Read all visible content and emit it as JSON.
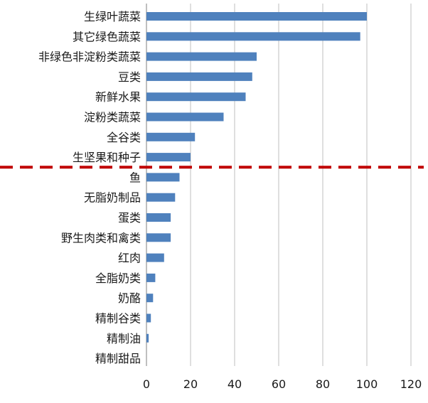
{
  "chart_data": {
    "type": "bar",
    "orientation": "horizontal",
    "categories": [
      "生绿叶蔬菜",
      "其它绿色蔬菜",
      "非绿色非淀粉类蔬菜",
      "豆类",
      "新鲜水果",
      "淀粉类蔬菜",
      "全谷类",
      "生坚果和种子",
      "鱼",
      "无脂奶制品",
      "蛋类",
      "野生肉类和禽类",
      "红肉",
      "全脂奶类",
      "奶酪",
      "精制谷类",
      "精制油",
      "精制甜品"
    ],
    "values": [
      100,
      97,
      50,
      48,
      45,
      35,
      22,
      20,
      15,
      13,
      11,
      11,
      8,
      4,
      3,
      2,
      1,
      0
    ],
    "xlim": [
      0,
      120
    ],
    "xticks": [
      "0",
      "20",
      "40",
      "60",
      "80",
      "100",
      "120"
    ],
    "grid": "vertical",
    "bar_color": "#4f81bd",
    "divider": {
      "after_category": "生坚果和种子",
      "style": "dashed",
      "color": "#c00000"
    }
  }
}
